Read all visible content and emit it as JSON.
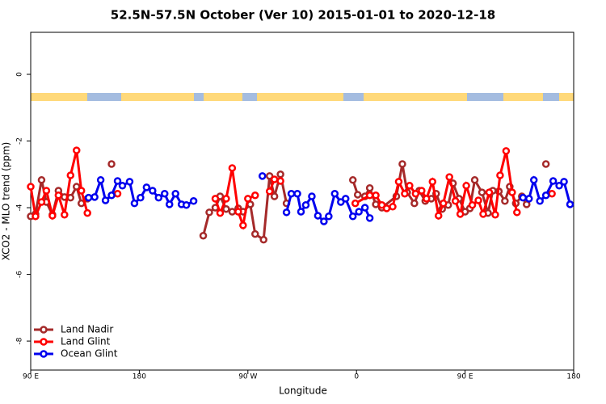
{
  "chart_data": {
    "type": "line",
    "title": "52.5N-57.5N October (Ver 10)   2015-01-01 to 2020-12-18",
    "x_label": "Longitude",
    "y_label": "XCO2 - MLO trend (ppm)",
    "xlim": [
      90,
      540
    ],
    "ylim": [
      -8.87,
      1.26
    ],
    "xticks": [
      {
        "value": 90,
        "label": "90 E"
      },
      180,
      {
        "value": 270,
        "label": "90 W"
      },
      {
        "value": 360,
        "label": "0"
      },
      {
        "value": 450,
        "label": "90 E"
      },
      {
        "value": 540,
        "label": "180"
      }
    ],
    "yticks": [
      0,
      -2,
      -4,
      -6,
      -8
    ],
    "legend": "lower left",
    "series": [
      {
        "name": "Land Nadir",
        "color": "#a52a2a",
        "x": [
          90,
          94,
          99,
          103,
          108,
          113,
          118,
          123,
          128,
          132,
          137,
          null,
          157,
          null,
          233,
          238,
          243,
          247,
          252,
          257,
          262,
          266,
          272,
          276,
          283,
          288,
          292,
          297,
          302,
          null,
          357,
          361,
          367,
          371,
          376,
          381,
          393,
          398,
          402,
          408,
          412,
          417,
          422,
          426,
          431,
          436,
          440,
          445,
          450,
          454,
          458,
          464,
          469,
          473,
          478,
          483,
          487,
          492,
          497,
          501,
          null,
          517
        ],
        "values": [
          -4.26,
          -4.19,
          -3.17,
          -3.83,
          -4.21,
          -3.49,
          -3.68,
          -3.7,
          -3.37,
          -3.87,
          -3.73,
          null,
          -2.69,
          null,
          -4.84,
          -4.14,
          -4.0,
          -3.66,
          -4.04,
          -4.12,
          -4.02,
          -4.12,
          -3.9,
          -4.79,
          -4.96,
          -3.05,
          -3.66,
          -3.0,
          -3.87,
          null,
          -3.17,
          -3.61,
          -3.66,
          -3.41,
          -3.9,
          -4.0,
          -3.66,
          -2.69,
          -3.54,
          -3.87,
          -3.49,
          -3.8,
          -3.73,
          -3.58,
          -4.04,
          -3.92,
          -3.27,
          -3.73,
          -4.12,
          -4.02,
          -3.17,
          -3.54,
          -4.16,
          -3.49,
          -3.51,
          -3.8,
          -3.37,
          -3.87,
          -3.66,
          -3.9,
          null,
          -2.69
        ]
      },
      {
        "name": "Land Glint",
        "color": "#ff0000",
        "x": [
          90,
          94,
          99,
          103,
          108,
          113,
          118,
          123,
          128,
          132,
          137,
          null,
          162,
          null,
          243,
          247,
          252,
          257,
          262,
          266,
          270,
          276,
          null,
          288,
          292,
          297,
          null,
          359,
          371,
          376,
          381,
          385,
          390,
          395,
          400,
          404,
          409,
          414,
          418,
          423,
          428,
          432,
          437,
          442,
          446,
          451,
          456,
          461,
          465,
          470,
          475,
          479,
          484,
          489,
          493,
          null,
          522
        ],
        "values": [
          -3.37,
          -4.26,
          -3.83,
          -3.49,
          -4.24,
          -3.63,
          -4.21,
          -3.03,
          -2.28,
          -3.49,
          -4.16,
          null,
          -3.58,
          null,
          -3.73,
          -4.16,
          -3.73,
          -2.81,
          -4.12,
          -4.53,
          -3.73,
          -3.63,
          null,
          -3.51,
          -3.15,
          -3.2,
          null,
          -3.87,
          -3.63,
          -3.63,
          -3.92,
          -4.02,
          -3.97,
          -3.22,
          -3.58,
          -3.34,
          -3.58,
          -3.49,
          -3.73,
          -3.22,
          -4.24,
          -3.87,
          -3.08,
          -3.8,
          -4.19,
          -3.34,
          -3.92,
          -3.78,
          -4.19,
          -3.54,
          -4.21,
          -3.03,
          -2.3,
          -3.54,
          -4.14,
          null,
          -3.58
        ]
      },
      {
        "name": "Ocean Glint",
        "color": "#0000ee",
        "x": [
          138,
          143,
          148,
          152,
          157,
          162,
          166,
          172,
          176,
          181,
          186,
          191,
          196,
          201,
          205,
          210,
          215,
          219,
          225,
          null,
          282,
          null,
          302,
          306,
          311,
          314,
          318,
          323,
          328,
          333,
          337,
          342,
          347,
          351,
          357,
          362,
          367,
          371,
          null,
          498,
          503,
          507,
          512,
          517,
          523,
          528,
          532,
          537
        ],
        "values": [
          -3.7,
          -3.68,
          -3.17,
          -3.78,
          -3.63,
          -3.2,
          -3.34,
          -3.22,
          -3.87,
          -3.7,
          -3.39,
          -3.49,
          -3.7,
          -3.58,
          -3.9,
          -3.58,
          -3.9,
          -3.92,
          -3.8,
          null,
          -3.05,
          null,
          -4.14,
          -3.58,
          -3.58,
          -4.12,
          -3.92,
          -3.66,
          -4.24,
          -4.41,
          -4.26,
          -3.58,
          -3.83,
          -3.73,
          -4.26,
          -4.12,
          -4.0,
          -4.31,
          null,
          -3.7,
          -3.73,
          -3.17,
          -3.8,
          -3.63,
          -3.2,
          -3.34,
          -3.22,
          -3.9
        ]
      }
    ]
  }
}
